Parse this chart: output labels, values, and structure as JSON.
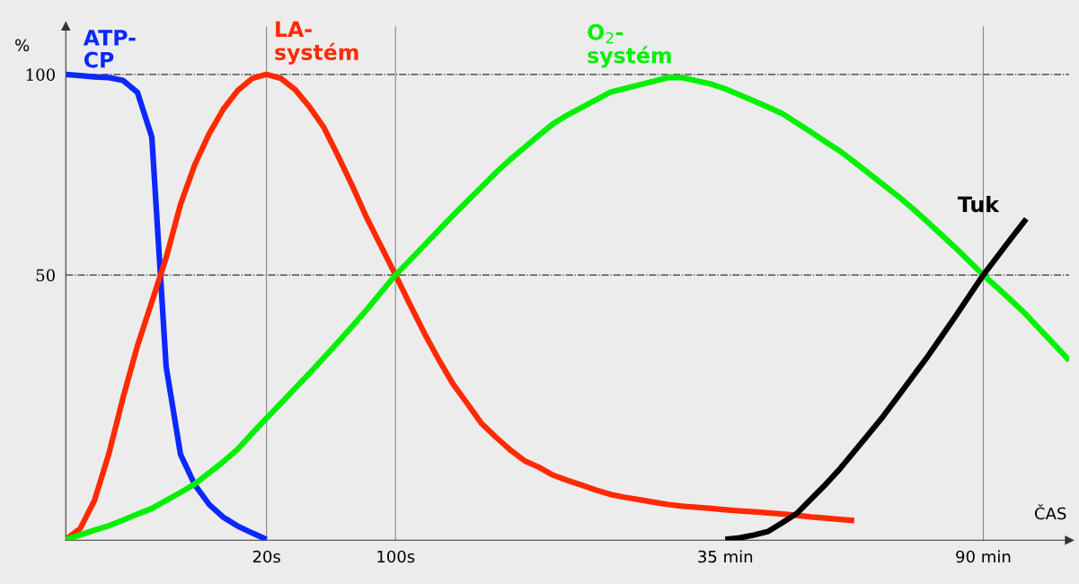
{
  "chart_data": {
    "type": "line",
    "xlabel": "ČAS",
    "ylabel": "%",
    "categories": [
      null,
      null,
      null,
      null,
      null,
      null,
      null,
      null,
      null,
      null,
      null,
      null,
      null,
      null,
      "20s",
      null,
      null,
      null,
      null,
      null,
      null,
      null,
      null,
      "100s",
      null,
      null,
      null,
      null,
      null,
      null,
      null,
      null,
      null,
      null,
      null,
      null,
      null,
      null,
      null,
      null,
      null,
      null,
      null,
      null,
      null,
      null,
      "35 min",
      null,
      null,
      null,
      null,
      null,
      null,
      null,
      null,
      null,
      null,
      null,
      null,
      null,
      null,
      null,
      null,
      null,
      "90 min",
      null,
      null,
      null,
      null,
      null,
      null
    ],
    "ylim": [
      -16.1,
      112
    ],
    "yticks": [
      50,
      100
    ],
    "grid": false,
    "legend": false,
    "marker": "none",
    "line_style": "solid",
    "ref_lines": [
      {
        "axis": "y",
        "value": 50,
        "color": "#333333",
        "line_style": "dashdot"
      },
      {
        "axis": "y",
        "value": 100,
        "color": "#333333",
        "line_style": "dashdot"
      },
      {
        "axis": "x",
        "value": "20s",
        "color": "#888888",
        "line_style": "solid"
      },
      {
        "axis": "x",
        "value": "100s",
        "color": "#888888",
        "line_style": "solid"
      },
      {
        "axis": "x",
        "value": "90 min",
        "color": "#888888",
        "line_style": "solid"
      }
    ],
    "series": [
      {
        "name": "ATP-\nCP",
        "color": "#0a28ff",
        "values": [
          100.0,
          99.7,
          99.4,
          99.2,
          98.5,
          95.5,
          84.4,
          27.1,
          5.3,
          -2.3,
          -7.2,
          -10.4,
          -12.6,
          -14.3,
          -15.9,
          null,
          null,
          null,
          null,
          null,
          null,
          null,
          null,
          null,
          null,
          null,
          null,
          null,
          null,
          null,
          null,
          null,
          null,
          null,
          null,
          null,
          null,
          null,
          null,
          null,
          null,
          null,
          null,
          null,
          null,
          null,
          null,
          null,
          null,
          null,
          null,
          null,
          null,
          null,
          null,
          null,
          null,
          null,
          null,
          null,
          null,
          null,
          null,
          null,
          null,
          null,
          null,
          null,
          null,
          null,
          null
        ]
      },
      {
        "name": "LA-\nsystém",
        "color": "#ff2a00",
        "values": [
          -15.9,
          -13.2,
          -6.2,
          5.4,
          19.5,
          32.4,
          43.3,
          54.3,
          67.6,
          77.5,
          85.2,
          91.4,
          96.0,
          99.0,
          100,
          99.0,
          96.2,
          91.9,
          86.8,
          79.6,
          72.1,
          64.2,
          57.1,
          50,
          42.7,
          35.6,
          29.0,
          22.9,
          18.0,
          13.0,
          9.6,
          6.4,
          3.7,
          2.1,
          0.1,
          -1.2,
          -2.4,
          -3.6,
          -4.7,
          -5.4,
          -6.0,
          -6.6,
          -7.2,
          -7.6,
          -7.9,
          -8.2,
          -8.5,
          -8.8,
          -9.0,
          -9.3,
          -9.6,
          -9.9,
          -10.3,
          -10.6,
          -10.9,
          -11.2,
          null,
          null,
          null,
          null,
          null,
          null,
          null,
          null,
          null,
          null,
          null,
          null,
          null,
          null,
          null
        ]
      },
      {
        "name": "O$_{2}$-\nsystém",
        "color": "#00f000",
        "values": [
          -15.9,
          -14.8,
          -13.6,
          -12.5,
          -11.1,
          -9.6,
          -8.2,
          -6.2,
          -4.2,
          -2.1,
          0.7,
          3.5,
          6.6,
          10.5,
          14.3,
          18.0,
          21.8,
          25.5,
          29.4,
          33.3,
          37.3,
          41.4,
          45.7,
          50,
          53.7,
          57.4,
          61.1,
          64.8,
          68.4,
          71.9,
          75.5,
          78.8,
          81.8,
          84.8,
          87.7,
          89.9,
          91.8,
          93.7,
          95.6,
          96.5,
          97.4,
          98.3,
          99.2,
          99.2,
          98.4,
          97.6,
          96.4,
          94.9,
          93.4,
          91.8,
          90.2,
          87.9,
          85.6,
          83.2,
          80.9,
          78.2,
          75.4,
          72.6,
          69.8,
          66.8,
          63.6,
          60.3,
          57.0,
          53.5,
          50,
          46.8,
          43.5,
          40.1,
          36.3,
          32.5,
          28.7
        ]
      },
      {
        "name": "Tuk",
        "color": "#000000",
        "values": [
          null,
          null,
          null,
          null,
          null,
          null,
          null,
          null,
          null,
          null,
          null,
          null,
          null,
          null,
          null,
          null,
          null,
          null,
          null,
          null,
          null,
          null,
          null,
          null,
          null,
          null,
          null,
          null,
          null,
          null,
          null,
          null,
          null,
          null,
          null,
          null,
          null,
          null,
          null,
          null,
          null,
          null,
          null,
          null,
          null,
          null,
          -15.9,
          -15.5,
          -14.8,
          -13.9,
          -11.7,
          -9.4,
          -5.8,
          -2.2,
          1.7,
          6.0,
          10.3,
          14.7,
          19.5,
          24.3,
          29.1,
          34.2,
          39.4,
          44.7,
          50,
          54.7,
          59.4,
          64.0,
          null,
          null,
          null
        ]
      }
    ]
  }
}
